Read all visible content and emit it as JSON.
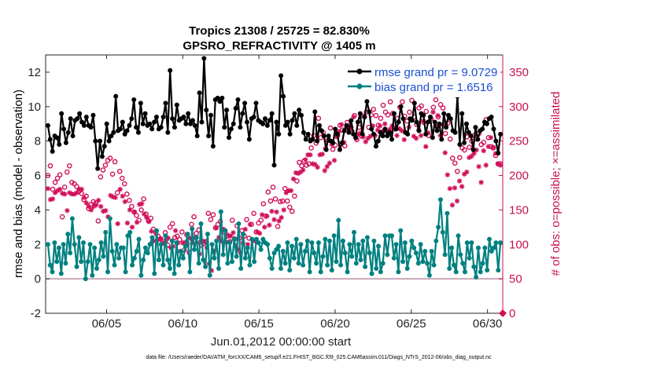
{
  "chart_data": {
    "type": "line",
    "title_line1": "Tropics 21308 / 25725 = 82.830%",
    "title_line2": "GPSRO_REFRACTIVITY @ 1405 m",
    "xlabel": "Jun.01,2012 00:00:00 start",
    "ylabel_left": "rmse and bias (model - observation)",
    "ylabel_right": "# of obs: o=possible; ×=assimilated",
    "footer": "data file: /Users/raeder/DAI/ATM_forcXX/CAM6_setup/f.e21.FHIST_BGC.f09_025.CAM6assim.011/Diags_NTrS_2012-06/obs_diag_output.nc",
    "xlim": [
      1,
      31
    ],
    "ylim_left": [
      -2,
      13
    ],
    "ylim_right": [
      0,
      375
    ],
    "x_ticks": [
      5,
      10,
      15,
      20,
      25,
      30
    ],
    "x_tick_labels": [
      "06/05",
      "06/10",
      "06/15",
      "06/20",
      "06/25",
      "06/30"
    ],
    "y_ticks_left": [
      -2,
      0,
      2,
      4,
      6,
      8,
      10,
      12
    ],
    "y_ticks_right": [
      0,
      50,
      100,
      150,
      200,
      250,
      300,
      350
    ],
    "legend": [
      "rmse grand pr = 9.0729",
      "bias grand pr = 1.6516"
    ],
    "colors": {
      "rmse": "#000000",
      "bias": "#008080",
      "obs": "#d1105a",
      "zero_line": "#c9a8b8"
    },
    "series": [
      {
        "name": "rmse",
        "values": [
          8.9,
          8.1,
          7.4,
          8.3,
          8.2,
          7.8,
          9.6,
          8.7,
          7.9,
          8.5,
          9.3,
          8.3,
          9.2,
          9.3,
          9.6,
          9.1,
          8.9,
          9.4,
          8.9,
          8.8,
          9.5,
          8.0,
          6.4,
          8.0,
          7.1,
          7.7,
          9.0,
          8.0,
          8.3,
          8.5,
          10.6,
          8.6,
          8.7,
          9.1,
          8.4,
          8.6,
          8.9,
          9.3,
          10.4,
          8.8,
          8.5,
          10.2,
          9.0,
          9.6,
          8.9,
          9.0,
          8.7,
          9.1,
          9.4,
          8.7,
          8.8,
          9.4,
          10.2,
          8.5,
          12.1,
          9.3,
          8.8,
          10.1,
          9.2,
          9.3,
          9.4,
          9.0,
          9.6,
          9.0,
          9.2,
          8.9,
          8.3,
          10.8,
          9.1,
          12.8,
          9.8,
          8.3,
          9.5,
          7.7,
          10.4,
          10.5,
          10.3,
          10.5,
          8.8,
          9.8,
          8.2,
          8.7,
          9.0,
          9.9,
          10.4,
          8.8,
          9.6,
          10.2,
          9.1,
          8.1,
          9.3,
          9.4,
          10.2,
          9.2,
          9.1,
          9.0,
          9.3,
          8.9,
          9.2,
          9.6,
          6.6,
          9.1,
          8.4,
          11.8,
          10.6,
          8.9,
          9.1,
          8.4,
          9.2,
          9.6,
          8.9,
          9.8,
          9.5,
          8.5,
          8.1,
          8.4,
          8.0,
          8.1,
          9.7,
          8.0,
          8.9,
          8.6,
          8.3,
          7.5,
          8.3,
          8.0,
          7.9,
          8.7,
          8.4,
          7.5,
          7.9,
          8.6,
          8.9,
          8.5,
          9.2,
          8.4,
          8.2,
          9.1,
          9.6,
          8.4,
          9.4,
          10.3,
          9.7,
          8.7,
          8.4,
          7.7,
          8.0,
          8.5,
          8.3,
          8.7,
          8.3,
          8.5,
          8.1,
          9.6,
          8.7,
          9.1,
          10.0,
          9.3,
          8.5,
          8.4,
          9.3,
          9.2,
          10.2,
          9.1,
          8.6,
          9.6,
          9.5,
          8.4,
          9.1,
          9.4,
          8.2,
          9.1,
          8.6,
          9.0,
          8.1,
          9.6,
          8.8,
          9.5,
          9.3,
          8.6,
          8.5,
          10.6,
          7.8,
          9.6,
          7.9,
          9.0,
          8.5,
          8.3,
          7.5,
          8.8,
          8.1,
          8.6,
          8.7,
          9.1,
          9.0,
          9.3,
          9.4,
          8.7,
          8.0,
          7.3,
          8.4
        ]
      },
      {
        "name": "bias",
        "values": [
          2.0,
          0.8,
          0.4,
          2.1,
          1.0,
          1.8,
          0.3,
          2.0,
          0.9,
          2.6,
          1.5,
          3.5,
          2.0,
          0.7,
          2.4,
          1.0,
          2.1,
          0.0,
          1.0,
          2.0,
          0.2,
          1.8,
          0.6,
          1.1,
          2.1,
          1.3,
          2.7,
          0.4,
          3.5,
          1.6,
          0.8,
          2.0,
          1.2,
          1.8,
          1.8,
          0.4,
          2.5,
          2.7,
          0.8,
          1.2,
          1.6,
          2.3,
          0.2,
          1.1,
          1.8,
          1.5,
          2.0,
          2.4,
          0.3,
          2.8,
          1.1,
          2.0,
          0.8,
          2.5,
          1.1,
          0.6,
          2.2,
          0.3,
          2.1,
          0.8,
          1.6,
          1.2,
          1.9,
          2.6,
          0.4,
          2.9,
          1.7,
          2.4,
          0.9,
          3.2,
          1.1,
          0.7,
          2.6,
          0.2,
          2.0,
          1.2,
          2.2,
          0.6,
          3.9,
          1.4,
          2.8,
          0.9,
          2.1,
          1.0,
          2.3,
          1.3,
          3.2,
          0.6,
          2.6,
          1.2,
          1.8,
          0.8,
          2.3,
          1.0,
          2.3,
          2.1,
          1.7,
          2.3,
          2.1,
          2.0,
          1.2,
          0.6,
          1.5,
          1.7,
          1.9,
          0.6,
          1.6,
          0.9,
          2.1,
          0.5,
          1.9,
          1.2,
          2.3,
          0.9,
          2.0,
          0.8,
          1.6,
          2.2,
          0.4,
          2.1,
          1.5,
          0.9,
          2.1,
          0.4,
          1.3,
          2.3,
          0.8,
          2.2,
          0.5,
          2.5,
          1.0,
          3.4,
          0.8,
          2.2,
          1.5,
          0.4,
          2.0,
          1.3,
          2.7,
          0.9,
          2.0,
          1.1,
          2.2,
          0.7,
          2.4,
          1.5,
          0.3,
          2.2,
          0.6,
          1.9,
          0.4,
          0.9,
          2.5,
          1.4,
          2.5,
          2.5,
          1.2,
          2.0,
          0.4,
          2.8,
          1.0,
          2.1,
          0.6,
          1.3,
          2.2,
          1.8,
          1.5,
          0.9,
          2.0,
          1.0,
          1.6,
          0.9,
          0.2,
          1.6,
          0.8,
          2.2,
          3.0,
          4.6,
          2.7,
          1.4,
          3.8,
          0.6,
          1.8,
          0.8,
          0.4,
          2.5,
          1.4,
          0.9,
          0.4,
          2.1,
          1.2,
          2.1,
          0.7,
          0.1,
          1.8,
          0.4,
          0.9,
          1.8,
          0.5,
          2.3,
          1.6,
          1.8,
          2.1,
          0.5,
          2.1
        ]
      },
      {
        "name": "possible",
        "values": [
          200,
          214,
          180,
          190,
          196,
          201,
          140,
          183,
          205,
          214,
          190,
          188,
          184,
          177,
          174,
          165,
          170,
          152,
          158,
          162,
          160,
          134,
          198,
          208,
          215,
          222,
          225,
          202,
          220,
          175,
          206,
          196,
          188,
          173,
          164,
          155,
          147,
          142,
          135,
          150,
          166,
          144,
          134,
          138,
          122,
          118,
          112,
          108,
          105,
          117,
          99,
          125,
          130,
          110,
          112,
          107,
          118,
          92,
          114,
          88,
          129,
          140,
          116,
          121,
          99,
          101,
          104,
          145,
          136,
          143,
          124,
          129,
          133,
          121,
          117,
          112,
          104,
          135,
          108,
          127,
          109,
          120,
          112,
          136,
          109,
          129,
          145,
          118,
          131,
          135,
          159,
          141,
          176,
          163,
          183,
          166,
          126,
          162,
          163,
          181,
          163,
          154,
          148,
          170,
          192,
          219,
          214,
          221,
          215,
          217,
          240,
          258,
          247,
          283,
          255,
          262,
          239,
          251,
          269,
          238,
          244,
          258,
          273,
          266,
          243,
          277,
          266,
          264,
          287,
          252,
          270,
          257,
          286,
          292,
          270,
          288,
          296,
          287,
          273,
          283,
          302,
          292,
          288,
          307,
          290,
          268,
          283,
          299,
          307,
          286,
          279,
          292,
          309,
          285,
          274,
          298,
          301,
          277,
          293,
          258,
          282,
          299,
          310,
          285,
          303,
          298,
          261,
          276,
          253,
          225,
          218,
          206,
          226,
          240,
          237,
          256,
          241,
          250,
          258,
          253,
          261,
          245,
          248,
          281,
          255,
          242,
          240,
          229,
          217,
          217
        ]
      },
      {
        "name": "assimilated",
        "values": [
          181,
          165,
          166,
          175,
          178,
          180,
          174,
          173,
          149,
          175,
          173,
          173,
          175,
          180,
          180,
          168,
          160,
          155,
          150,
          155,
          157,
          164,
          155,
          148,
          149,
          140,
          171,
          169,
          168,
          130,
          180,
          170,
          162,
          131,
          150,
          125,
          147,
          132,
          158,
          159,
          144,
          139,
          133,
          119,
          105,
          115,
          107,
          108,
          102,
          105,
          109,
          95,
          97,
          120,
          102,
          90,
          102,
          103,
          100,
          109,
          103,
          110,
          103,
          86,
          105,
          104,
          95,
          72,
          62,
          90,
          124,
          110,
          105,
          122,
          103,
          113,
          112,
          117,
          98,
          93,
          88,
          102,
          122,
          100,
          129,
          106,
          105,
          118,
          116,
          143,
          125,
          141,
          128,
          148,
          136,
          147,
          134,
          139,
          150,
          175,
          178,
          178,
          195,
          204,
          203,
          205,
          208,
          223,
          230,
          230,
          217,
          216,
          212,
          230,
          231,
          207,
          213,
          218,
          245,
          222,
          256,
          264,
          274,
          248,
          270,
          270,
          270,
          285,
          254,
          260,
          262,
          256,
          249,
          254,
          257,
          272,
          258,
          266,
          272,
          264,
          275,
          264,
          267,
          272,
          267,
          258,
          268,
          265,
          252,
          262,
          270,
          281,
          257,
          254,
          266,
          258,
          279,
          242,
          262,
          284,
          292,
          272,
          287,
          258,
          274,
          233,
          201,
          181,
          157,
          182,
          163,
          192,
          184,
          202,
          205,
          226,
          228,
          232,
          237,
          213,
          190,
          236,
          215,
          242,
          255,
          241,
          232,
          217,
          215
        ]
      }
    ]
  }
}
